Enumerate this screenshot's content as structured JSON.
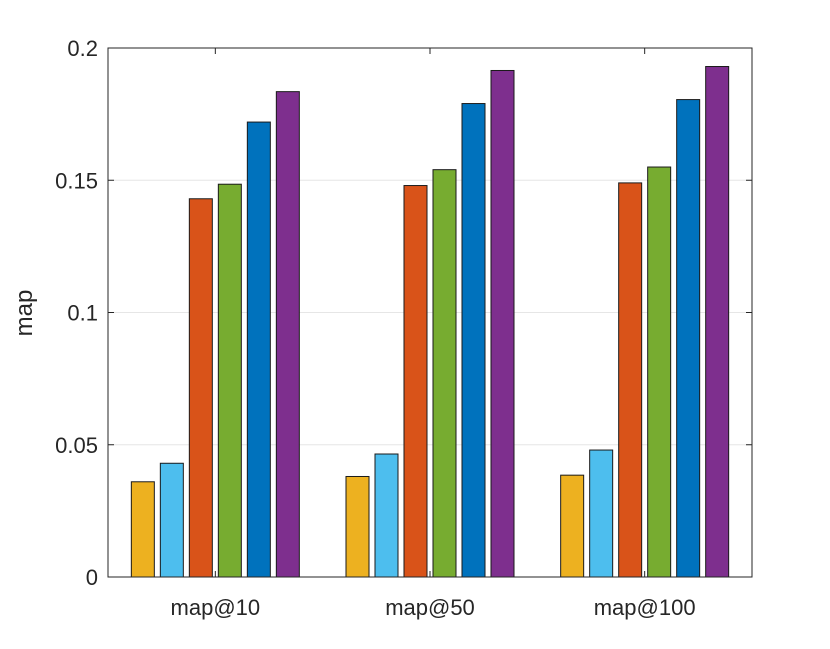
{
  "chart_data": {
    "type": "bar",
    "title": "",
    "xlabel": "",
    "ylabel": "map",
    "categories": [
      "map@10",
      "map@50",
      "map@100"
    ],
    "ylim": [
      0,
      0.2
    ],
    "yticks": [
      0,
      0.05,
      0.1,
      0.15,
      0.2
    ],
    "ytick_labels": [
      "0",
      "0.05",
      "0.1",
      "0.15",
      "0.2"
    ],
    "grid": true,
    "legend": "none",
    "series": [
      {
        "color": "#EDB120",
        "values": [
          0.036,
          0.038,
          0.0385
        ]
      },
      {
        "color": "#4DBEEE",
        "values": [
          0.043,
          0.0465,
          0.048
        ]
      },
      {
        "color": "#D95319",
        "values": [
          0.143,
          0.148,
          0.149
        ]
      },
      {
        "color": "#77AC30",
        "values": [
          0.1485,
          0.154,
          0.155
        ]
      },
      {
        "color": "#0072BD",
        "values": [
          0.172,
          0.179,
          0.1805
        ]
      },
      {
        "color": "#7E2F8E",
        "values": [
          0.1835,
          0.1915,
          0.193
        ]
      }
    ]
  }
}
